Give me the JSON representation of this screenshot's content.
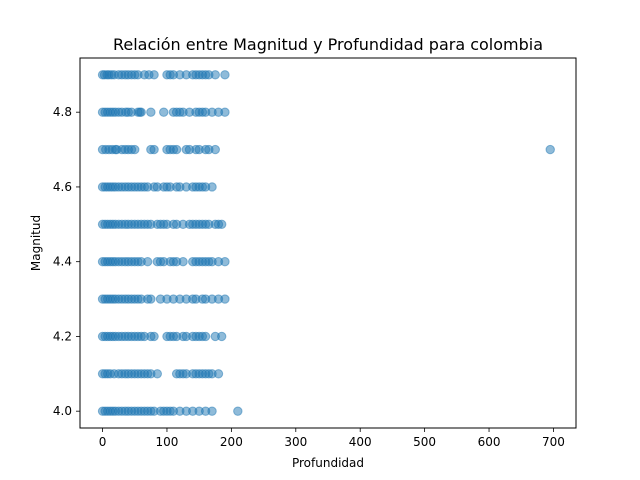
{
  "chart_data": {
    "type": "scatter",
    "title": "Relación entre Magnitud y Profundidad para colombia",
    "xlabel": "Profundidad",
    "ylabel": "Magnitud",
    "xlim": [
      -35,
      735
    ],
    "ylim": [
      3.955,
      4.945
    ],
    "xticks": [
      0,
      100,
      200,
      300,
      400,
      500,
      600,
      700
    ],
    "yticks": [
      4.0,
      4.2,
      4.4,
      4.6,
      4.8
    ],
    "ytick_labels": [
      "4.0",
      "4.2",
      "4.4",
      "4.6",
      "4.8"
    ],
    "grid": false,
    "marker_color": "#1f77b4",
    "marker_alpha": 0.5,
    "series": [
      {
        "points": [
          [
            0,
            4.9
          ],
          [
            3,
            4.9
          ],
          [
            7,
            4.9
          ],
          [
            10,
            4.9
          ],
          [
            14,
            4.9
          ],
          [
            18,
            4.9
          ],
          [
            25,
            4.9
          ],
          [
            30,
            4.9
          ],
          [
            35,
            4.9
          ],
          [
            40,
            4.9
          ],
          [
            45,
            4.9
          ],
          [
            50,
            4.9
          ],
          [
            55,
            4.9
          ],
          [
            65,
            4.9
          ],
          [
            72,
            4.9
          ],
          [
            80,
            4.9
          ],
          [
            100,
            4.9
          ],
          [
            105,
            4.9
          ],
          [
            110,
            4.9
          ],
          [
            120,
            4.9
          ],
          [
            130,
            4.9
          ],
          [
            140,
            4.9
          ],
          [
            145,
            4.9
          ],
          [
            150,
            4.9
          ],
          [
            155,
            4.9
          ],
          [
            160,
            4.9
          ],
          [
            165,
            4.9
          ],
          [
            175,
            4.9
          ],
          [
            190,
            4.9
          ],
          [
            0,
            4.8
          ],
          [
            4,
            4.8
          ],
          [
            8,
            4.8
          ],
          [
            12,
            4.8
          ],
          [
            16,
            4.8
          ],
          [
            20,
            4.8
          ],
          [
            25,
            4.8
          ],
          [
            30,
            4.8
          ],
          [
            36,
            4.8
          ],
          [
            40,
            4.8
          ],
          [
            45,
            4.8
          ],
          [
            55,
            4.8
          ],
          [
            58,
            4.8
          ],
          [
            60,
            4.8
          ],
          [
            75,
            4.8
          ],
          [
            95,
            4.8
          ],
          [
            110,
            4.8
          ],
          [
            115,
            4.8
          ],
          [
            120,
            4.8
          ],
          [
            125,
            4.8
          ],
          [
            135,
            4.8
          ],
          [
            145,
            4.8
          ],
          [
            150,
            4.8
          ],
          [
            155,
            4.8
          ],
          [
            160,
            4.8
          ],
          [
            170,
            4.8
          ],
          [
            180,
            4.8
          ],
          [
            190,
            4.8
          ],
          [
            0,
            4.7
          ],
          [
            5,
            4.7
          ],
          [
            10,
            4.7
          ],
          [
            15,
            4.7
          ],
          [
            20,
            4.7
          ],
          [
            22,
            4.7
          ],
          [
            30,
            4.7
          ],
          [
            35,
            4.7
          ],
          [
            40,
            4.7
          ],
          [
            45,
            4.7
          ],
          [
            50,
            4.7
          ],
          [
            75,
            4.7
          ],
          [
            80,
            4.7
          ],
          [
            100,
            4.7
          ],
          [
            105,
            4.7
          ],
          [
            110,
            4.7
          ],
          [
            115,
            4.7
          ],
          [
            130,
            4.7
          ],
          [
            135,
            4.7
          ],
          [
            145,
            4.7
          ],
          [
            150,
            4.7
          ],
          [
            160,
            4.7
          ],
          [
            165,
            4.7
          ],
          [
            175,
            4.7
          ],
          [
            695,
            4.7
          ],
          [
            0,
            4.6
          ],
          [
            4,
            4.6
          ],
          [
            8,
            4.6
          ],
          [
            12,
            4.6
          ],
          [
            16,
            4.6
          ],
          [
            20,
            4.6
          ],
          [
            25,
            4.6
          ],
          [
            30,
            4.6
          ],
          [
            35,
            4.6
          ],
          [
            40,
            4.6
          ],
          [
            45,
            4.6
          ],
          [
            50,
            4.6
          ],
          [
            55,
            4.6
          ],
          [
            60,
            4.6
          ],
          [
            65,
            4.6
          ],
          [
            70,
            4.6
          ],
          [
            80,
            4.6
          ],
          [
            85,
            4.6
          ],
          [
            95,
            4.6
          ],
          [
            100,
            4.6
          ],
          [
            105,
            4.6
          ],
          [
            115,
            4.6
          ],
          [
            120,
            4.6
          ],
          [
            130,
            4.6
          ],
          [
            140,
            4.6
          ],
          [
            145,
            4.6
          ],
          [
            150,
            4.6
          ],
          [
            155,
            4.6
          ],
          [
            160,
            4.6
          ],
          [
            170,
            4.6
          ],
          [
            0,
            4.5
          ],
          [
            4,
            4.5
          ],
          [
            8,
            4.5
          ],
          [
            12,
            4.5
          ],
          [
            16,
            4.5
          ],
          [
            20,
            4.5
          ],
          [
            25,
            4.5
          ],
          [
            30,
            4.5
          ],
          [
            35,
            4.5
          ],
          [
            40,
            4.5
          ],
          [
            45,
            4.5
          ],
          [
            50,
            4.5
          ],
          [
            55,
            4.5
          ],
          [
            60,
            4.5
          ],
          [
            65,
            4.5
          ],
          [
            70,
            4.5
          ],
          [
            75,
            4.5
          ],
          [
            85,
            4.5
          ],
          [
            90,
            4.5
          ],
          [
            95,
            4.5
          ],
          [
            100,
            4.5
          ],
          [
            110,
            4.5
          ],
          [
            115,
            4.5
          ],
          [
            125,
            4.5
          ],
          [
            135,
            4.5
          ],
          [
            140,
            4.5
          ],
          [
            145,
            4.5
          ],
          [
            150,
            4.5
          ],
          [
            155,
            4.5
          ],
          [
            160,
            4.5
          ],
          [
            165,
            4.5
          ],
          [
            175,
            4.5
          ],
          [
            180,
            4.5
          ],
          [
            185,
            4.5
          ],
          [
            0,
            4.4
          ],
          [
            4,
            4.4
          ],
          [
            8,
            4.4
          ],
          [
            12,
            4.4
          ],
          [
            16,
            4.4
          ],
          [
            20,
            4.4
          ],
          [
            25,
            4.4
          ],
          [
            30,
            4.4
          ],
          [
            35,
            4.4
          ],
          [
            40,
            4.4
          ],
          [
            45,
            4.4
          ],
          [
            50,
            4.4
          ],
          [
            55,
            4.4
          ],
          [
            60,
            4.4
          ],
          [
            70,
            4.4
          ],
          [
            85,
            4.4
          ],
          [
            90,
            4.4
          ],
          [
            95,
            4.4
          ],
          [
            105,
            4.4
          ],
          [
            110,
            4.4
          ],
          [
            115,
            4.4
          ],
          [
            125,
            4.4
          ],
          [
            140,
            4.4
          ],
          [
            145,
            4.4
          ],
          [
            150,
            4.4
          ],
          [
            155,
            4.4
          ],
          [
            160,
            4.4
          ],
          [
            165,
            4.4
          ],
          [
            170,
            4.4
          ],
          [
            180,
            4.4
          ],
          [
            190,
            4.4
          ],
          [
            0,
            4.3
          ],
          [
            4,
            4.3
          ],
          [
            8,
            4.3
          ],
          [
            12,
            4.3
          ],
          [
            16,
            4.3
          ],
          [
            20,
            4.3
          ],
          [
            25,
            4.3
          ],
          [
            30,
            4.3
          ],
          [
            35,
            4.3
          ],
          [
            40,
            4.3
          ],
          [
            45,
            4.3
          ],
          [
            50,
            4.3
          ],
          [
            55,
            4.3
          ],
          [
            60,
            4.3
          ],
          [
            70,
            4.3
          ],
          [
            75,
            4.3
          ],
          [
            90,
            4.3
          ],
          [
            100,
            4.3
          ],
          [
            110,
            4.3
          ],
          [
            120,
            4.3
          ],
          [
            130,
            4.3
          ],
          [
            140,
            4.3
          ],
          [
            145,
            4.3
          ],
          [
            155,
            4.3
          ],
          [
            160,
            4.3
          ],
          [
            170,
            4.3
          ],
          [
            180,
            4.3
          ],
          [
            190,
            4.3
          ],
          [
            0,
            4.2
          ],
          [
            4,
            4.2
          ],
          [
            8,
            4.2
          ],
          [
            12,
            4.2
          ],
          [
            16,
            4.2
          ],
          [
            20,
            4.2
          ],
          [
            25,
            4.2
          ],
          [
            30,
            4.2
          ],
          [
            35,
            4.2
          ],
          [
            40,
            4.2
          ],
          [
            45,
            4.2
          ],
          [
            50,
            4.2
          ],
          [
            55,
            4.2
          ],
          [
            60,
            4.2
          ],
          [
            65,
            4.2
          ],
          [
            75,
            4.2
          ],
          [
            80,
            4.2
          ],
          [
            100,
            4.2
          ],
          [
            105,
            4.2
          ],
          [
            110,
            4.2
          ],
          [
            115,
            4.2
          ],
          [
            125,
            4.2
          ],
          [
            130,
            4.2
          ],
          [
            140,
            4.2
          ],
          [
            145,
            4.2
          ],
          [
            150,
            4.2
          ],
          [
            155,
            4.2
          ],
          [
            160,
            4.2
          ],
          [
            175,
            4.2
          ],
          [
            185,
            4.2
          ],
          [
            0,
            4.1
          ],
          [
            4,
            4.1
          ],
          [
            8,
            4.1
          ],
          [
            12,
            4.1
          ],
          [
            18,
            4.1
          ],
          [
            25,
            4.1
          ],
          [
            30,
            4.1
          ],
          [
            35,
            4.1
          ],
          [
            40,
            4.1
          ],
          [
            45,
            4.1
          ],
          [
            50,
            4.1
          ],
          [
            55,
            4.1
          ],
          [
            60,
            4.1
          ],
          [
            65,
            4.1
          ],
          [
            70,
            4.1
          ],
          [
            75,
            4.1
          ],
          [
            85,
            4.1
          ],
          [
            115,
            4.1
          ],
          [
            120,
            4.1
          ],
          [
            125,
            4.1
          ],
          [
            130,
            4.1
          ],
          [
            140,
            4.1
          ],
          [
            145,
            4.1
          ],
          [
            150,
            4.1
          ],
          [
            155,
            4.1
          ],
          [
            160,
            4.1
          ],
          [
            165,
            4.1
          ],
          [
            170,
            4.1
          ],
          [
            180,
            4.1
          ],
          [
            0,
            4.0
          ],
          [
            4,
            4.0
          ],
          [
            8,
            4.0
          ],
          [
            12,
            4.0
          ],
          [
            16,
            4.0
          ],
          [
            20,
            4.0
          ],
          [
            25,
            4.0
          ],
          [
            30,
            4.0
          ],
          [
            35,
            4.0
          ],
          [
            40,
            4.0
          ],
          [
            45,
            4.0
          ],
          [
            50,
            4.0
          ],
          [
            55,
            4.0
          ],
          [
            60,
            4.0
          ],
          [
            65,
            4.0
          ],
          [
            70,
            4.0
          ],
          [
            75,
            4.0
          ],
          [
            80,
            4.0
          ],
          [
            90,
            4.0
          ],
          [
            95,
            4.0
          ],
          [
            100,
            4.0
          ],
          [
            105,
            4.0
          ],
          [
            110,
            4.0
          ],
          [
            120,
            4.0
          ],
          [
            130,
            4.0
          ],
          [
            140,
            4.0
          ],
          [
            150,
            4.0
          ],
          [
            160,
            4.0
          ],
          [
            170,
            4.0
          ],
          [
            210,
            4.0
          ]
        ]
      }
    ]
  }
}
